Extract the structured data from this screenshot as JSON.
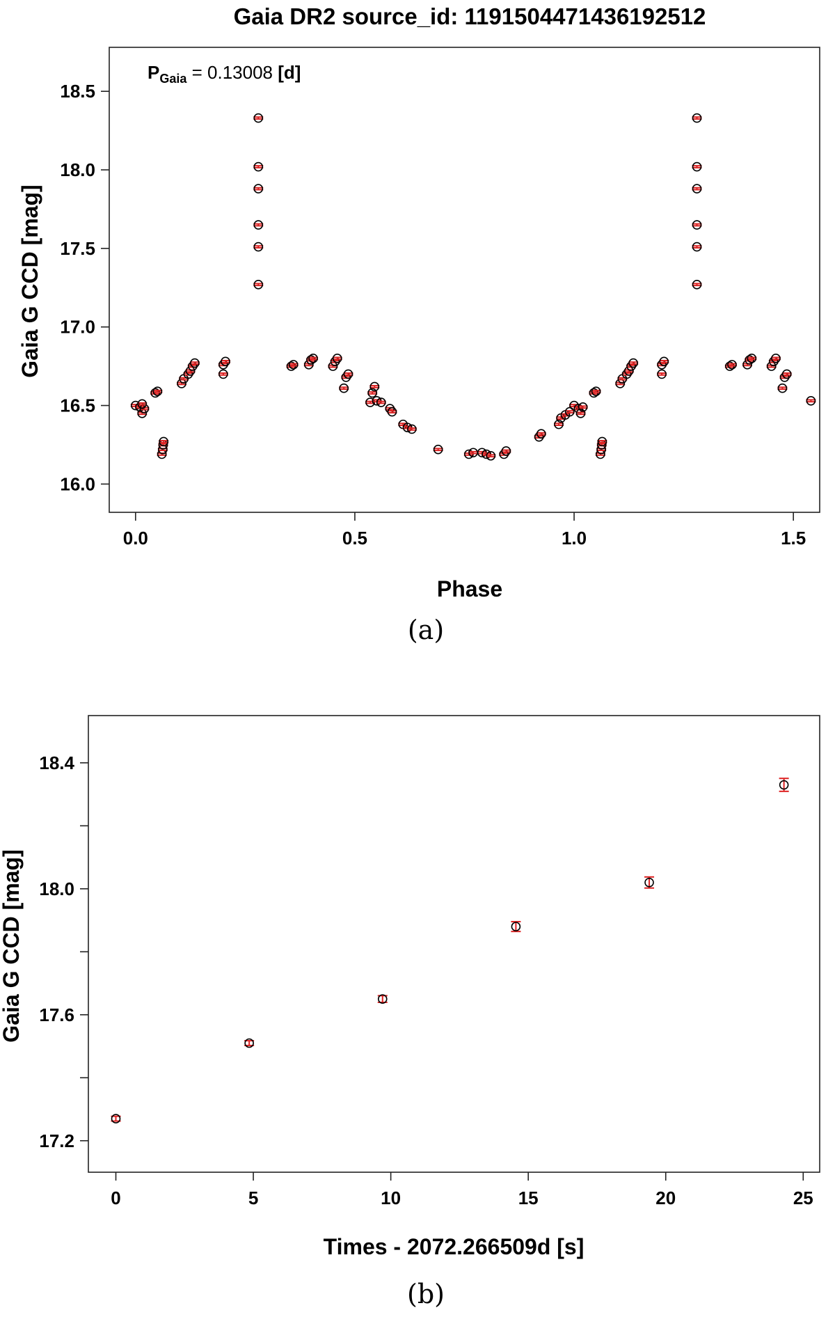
{
  "chart_data": [
    {
      "type": "scatter",
      "panel_label": "(a)",
      "title": "Gaia DR2 source_id: 1191504471436192512",
      "xlabel": "Phase",
      "ylabel": "Gaia G CCD [mag]",
      "annotation": {
        "symbol": "P",
        "subscript": "Gaia",
        "text": " = 0.13008 ",
        "unit": "[d]"
      },
      "xlim": [
        -0.06,
        1.56
      ],
      "ylim": [
        18.78,
        15.82
      ],
      "y_inverted": true,
      "xticks": [
        0.0,
        0.5,
        1.0,
        1.5
      ],
      "xtick_labels": [
        "0.0",
        "0.5",
        "1.0",
        "1.5"
      ],
      "yticks": [
        16.0,
        16.5,
        17.0,
        17.5,
        18.0,
        18.5
      ],
      "ytick_labels": [
        "16.0",
        "16.5",
        "17.0",
        "17.5",
        "18.0",
        "18.5"
      ],
      "grid": false,
      "marker": "open-circle",
      "errorbar_color": "#dd2222",
      "marker_color": "#000000",
      "series": [
        {
          "points": [
            [
              0.0,
              16.5
            ],
            [
              0.01,
              16.49
            ],
            [
              0.015,
              16.45
            ],
            [
              0.02,
              16.48
            ],
            [
              0.015,
              16.51
            ],
            [
              0.045,
              16.58
            ],
            [
              0.05,
              16.59
            ],
            [
              0.06,
              16.19
            ],
            [
              0.062,
              16.22
            ],
            [
              0.063,
              16.25
            ],
            [
              0.064,
              16.27
            ],
            [
              0.105,
              16.64
            ],
            [
              0.11,
              16.67
            ],
            [
              0.12,
              16.7
            ],
            [
              0.125,
              16.72
            ],
            [
              0.13,
              16.75
            ],
            [
              0.135,
              16.77
            ],
            [
              0.2,
              16.7
            ],
            [
              0.2,
              16.76
            ],
            [
              0.205,
              16.78
            ],
            [
              0.28,
              17.27
            ],
            [
              0.28,
              17.51
            ],
            [
              0.28,
              17.65
            ],
            [
              0.28,
              17.88
            ],
            [
              0.28,
              18.02
            ],
            [
              0.28,
              18.33
            ],
            [
              0.355,
              16.75
            ],
            [
              0.36,
              16.76
            ],
            [
              0.395,
              16.76
            ],
            [
              0.4,
              16.79
            ],
            [
              0.405,
              16.8
            ],
            [
              0.45,
              16.75
            ],
            [
              0.455,
              16.78
            ],
            [
              0.46,
              16.8
            ],
            [
              0.475,
              16.61
            ],
            [
              0.48,
              16.68
            ],
            [
              0.485,
              16.7
            ],
            [
              0.535,
              16.52
            ],
            [
              0.54,
              16.58
            ],
            [
              0.545,
              16.62
            ],
            [
              0.55,
              16.53
            ],
            [
              0.56,
              16.52
            ],
            [
              0.58,
              16.48
            ],
            [
              0.585,
              16.46
            ],
            [
              0.61,
              16.38
            ],
            [
              0.62,
              16.36
            ],
            [
              0.63,
              16.35
            ],
            [
              0.69,
              16.22
            ],
            [
              0.76,
              16.19
            ],
            [
              0.77,
              16.2
            ],
            [
              0.79,
              16.2
            ],
            [
              0.8,
              16.19
            ],
            [
              0.81,
              16.18
            ],
            [
              0.84,
              16.19
            ],
            [
              0.845,
              16.21
            ],
            [
              0.92,
              16.3
            ],
            [
              0.925,
              16.32
            ],
            [
              0.965,
              16.38
            ],
            [
              0.97,
              16.42
            ],
            [
              0.98,
              16.44
            ],
            [
              0.99,
              16.46
            ],
            [
              1.0,
              16.5
            ],
            [
              1.01,
              16.48
            ],
            [
              1.015,
              16.45
            ],
            [
              1.02,
              16.49
            ],
            [
              1.045,
              16.58
            ],
            [
              1.05,
              16.59
            ],
            [
              1.06,
              16.19
            ],
            [
              1.062,
              16.22
            ],
            [
              1.063,
              16.25
            ],
            [
              1.064,
              16.27
            ],
            [
              1.105,
              16.64
            ],
            [
              1.11,
              16.67
            ],
            [
              1.12,
              16.7
            ],
            [
              1.125,
              16.72
            ],
            [
              1.13,
              16.75
            ],
            [
              1.135,
              16.77
            ],
            [
              1.2,
              16.7
            ],
            [
              1.2,
              16.76
            ],
            [
              1.205,
              16.78
            ],
            [
              1.28,
              17.27
            ],
            [
              1.28,
              17.51
            ],
            [
              1.28,
              17.65
            ],
            [
              1.28,
              17.88
            ],
            [
              1.28,
              18.02
            ],
            [
              1.28,
              18.33
            ],
            [
              1.355,
              16.75
            ],
            [
              1.36,
              16.76
            ],
            [
              1.395,
              16.76
            ],
            [
              1.4,
              16.79
            ],
            [
              1.405,
              16.8
            ],
            [
              1.45,
              16.75
            ],
            [
              1.455,
              16.78
            ],
            [
              1.46,
              16.8
            ],
            [
              1.475,
              16.61
            ],
            [
              1.48,
              16.68
            ],
            [
              1.485,
              16.7
            ],
            [
              1.54,
              16.53
            ]
          ],
          "yerr": 0.015
        }
      ]
    },
    {
      "type": "scatter",
      "panel_label": "(b)",
      "title": "",
      "xlabel": "Times - 2072.266509d [s]",
      "ylabel": "Gaia G CCD [mag]",
      "xlim": [
        -1.0,
        25.6
      ],
      "ylim": [
        18.55,
        17.1
      ],
      "y_inverted": true,
      "xticks": [
        0,
        5,
        10,
        15,
        20,
        25
      ],
      "xtick_labels": [
        "0",
        "5",
        "10",
        "15",
        "20",
        "25"
      ],
      "yticks": [
        17.2,
        17.4,
        17.6,
        17.8,
        18.0,
        18.2,
        18.4
      ],
      "ytick_labels": [
        "17.2",
        "",
        "17.6",
        "",
        "18.0",
        "",
        "18.4"
      ],
      "grid": false,
      "marker": "open-circle",
      "errorbar_color": "#dd2222",
      "marker_color": "#000000",
      "series": [
        {
          "points": [
            [
              0.0,
              17.27
            ],
            [
              4.85,
              17.51
            ],
            [
              9.7,
              17.65
            ],
            [
              14.55,
              17.88
            ],
            [
              19.4,
              18.02
            ],
            [
              24.3,
              18.33
            ]
          ],
          "yerr": [
            0.012,
            0.012,
            0.015,
            0.02,
            0.022,
            0.025
          ]
        }
      ]
    }
  ]
}
